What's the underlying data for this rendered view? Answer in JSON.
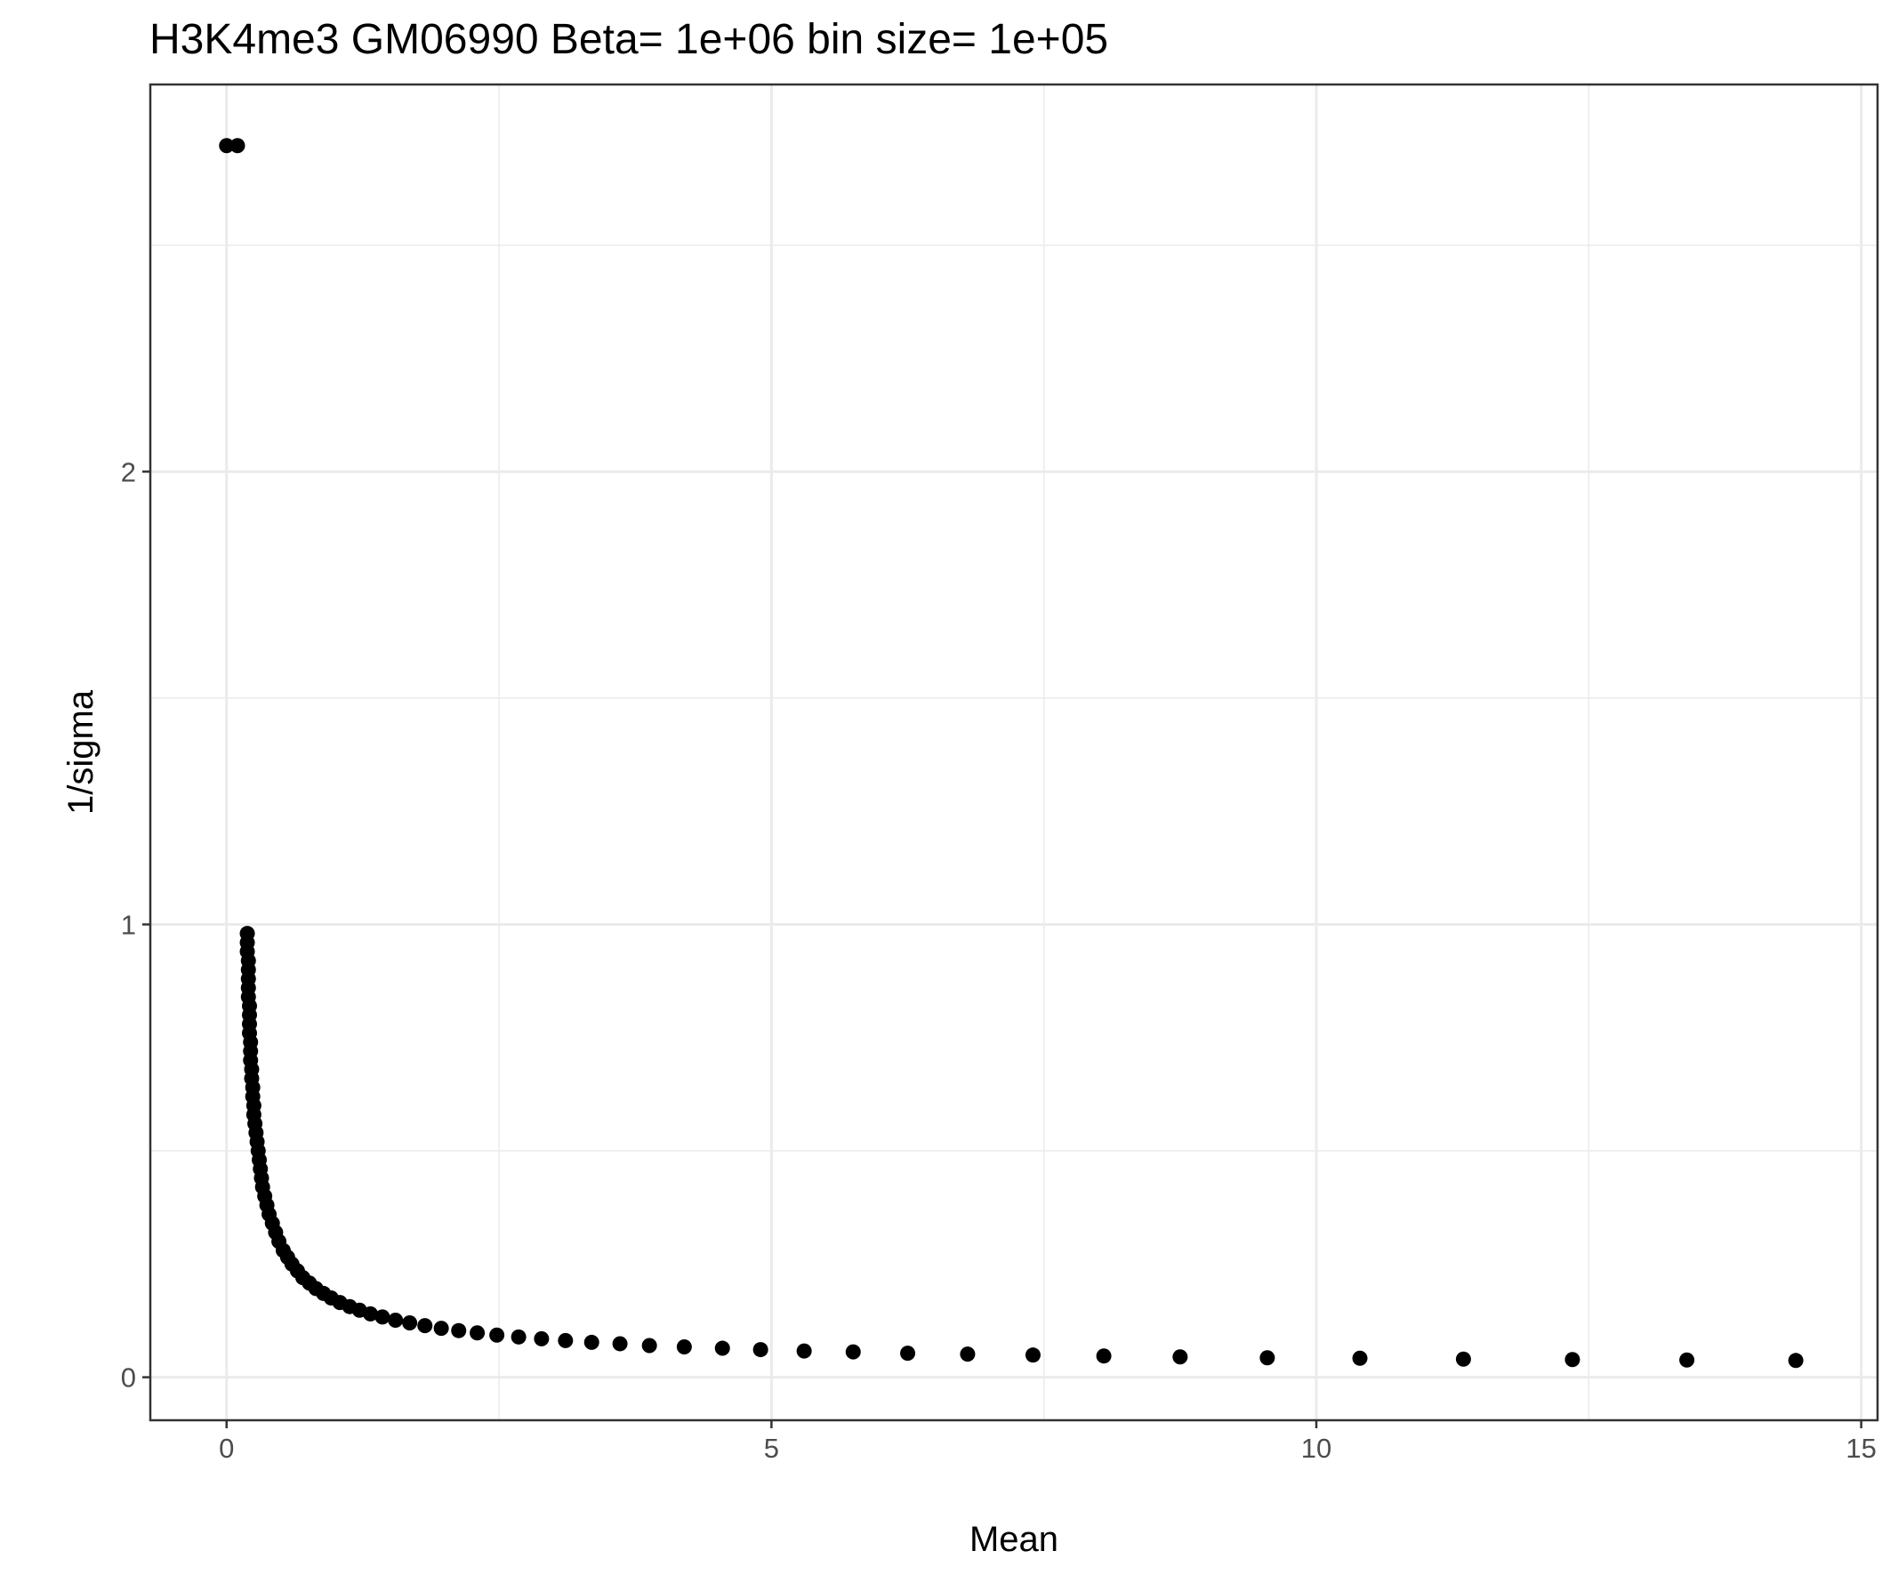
{
  "chart_data": {
    "type": "scatter",
    "title": "H3K4me3 GM06990  Beta=  1e+06  bin size=  1e+05",
    "xlabel": "Mean",
    "ylabel": "1/sigma",
    "xlim": [
      -0.7,
      15.15
    ],
    "ylim": [
      -0.095,
      2.855
    ],
    "x_ticks": [
      0,
      5,
      10,
      15
    ],
    "x_tick_labels": [
      "0",
      "5",
      "10",
      "15"
    ],
    "y_ticks": [
      0,
      1,
      2
    ],
    "y_tick_labels": [
      "0",
      "1",
      "2"
    ],
    "grid": true,
    "point_color": "#000000",
    "series": [
      {
        "x": [
          0.0,
          0.1,
          0.19,
          0.19,
          0.19,
          0.2,
          0.2,
          0.2,
          0.2,
          0.2,
          0.21,
          0.21,
          0.21,
          0.21,
          0.22,
          0.22,
          0.22,
          0.23,
          0.23,
          0.24,
          0.24,
          0.25,
          0.25,
          0.26,
          0.27,
          0.28,
          0.29,
          0.3,
          0.31,
          0.32,
          0.33,
          0.35,
          0.37,
          0.39,
          0.42,
          0.45,
          0.48,
          0.52,
          0.56,
          0.6,
          0.65,
          0.7,
          0.76,
          0.82,
          0.89,
          0.96,
          1.04,
          1.13,
          1.22,
          1.32,
          1.43,
          1.55,
          1.68,
          1.82,
          1.97,
          2.13,
          2.3,
          2.48,
          2.68,
          2.89,
          3.11,
          3.35,
          3.61,
          3.88,
          4.2,
          4.55,
          4.9,
          5.3,
          5.75,
          6.25,
          6.8,
          7.4,
          8.05,
          8.75,
          9.55,
          10.4,
          11.35,
          12.35,
          13.4,
          14.4
        ],
        "y": [
          2.72,
          2.72,
          0.98,
          0.96,
          0.94,
          0.92,
          0.9,
          0.88,
          0.86,
          0.84,
          0.82,
          0.8,
          0.78,
          0.76,
          0.74,
          0.72,
          0.7,
          0.68,
          0.66,
          0.64,
          0.62,
          0.6,
          0.58,
          0.56,
          0.54,
          0.52,
          0.5,
          0.48,
          0.46,
          0.44,
          0.42,
          0.4,
          0.38,
          0.36,
          0.34,
          0.32,
          0.3,
          0.28,
          0.265,
          0.25,
          0.235,
          0.22,
          0.208,
          0.196,
          0.185,
          0.175,
          0.165,
          0.156,
          0.148,
          0.14,
          0.133,
          0.126,
          0.12,
          0.114,
          0.108,
          0.103,
          0.098,
          0.093,
          0.089,
          0.085,
          0.081,
          0.077,
          0.074,
          0.07,
          0.067,
          0.064,
          0.061,
          0.058,
          0.056,
          0.053,
          0.051,
          0.049,
          0.047,
          0.045,
          0.043,
          0.042,
          0.04,
          0.039,
          0.038,
          0.037
        ]
      }
    ]
  }
}
